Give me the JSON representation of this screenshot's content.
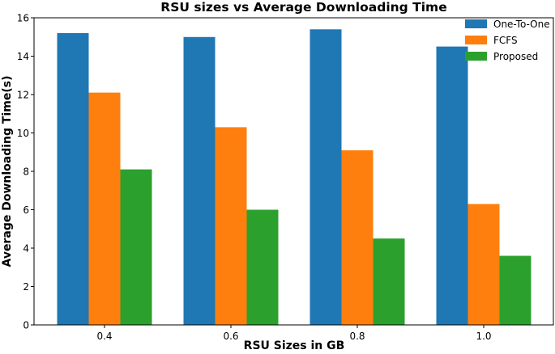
{
  "chart_data": {
    "type": "bar",
    "title": "RSU sizes vs Average Downloading Time",
    "xlabel": "RSU Sizes in GB",
    "ylabel": "Average Downloading Time(s)",
    "categories": [
      "0.4",
      "0.6",
      "0.8",
      "1.0"
    ],
    "ylim": [
      0,
      16
    ],
    "yticks": [
      "0",
      "2",
      "4",
      "6",
      "8",
      "10",
      "12",
      "14",
      "16"
    ],
    "grid": false,
    "legend_position": "top-right",
    "series": [
      {
        "name": "One-To-One",
        "color": "#1f77b4",
        "values": [
          15.2,
          15.0,
          15.4,
          14.5
        ]
      },
      {
        "name": "FCFS",
        "color": "#ff7f0e",
        "values": [
          12.1,
          10.3,
          9.1,
          6.3
        ]
      },
      {
        "name": "Proposed",
        "color": "#2ca02c",
        "values": [
          8.1,
          6.0,
          4.5,
          3.6
        ]
      }
    ]
  }
}
